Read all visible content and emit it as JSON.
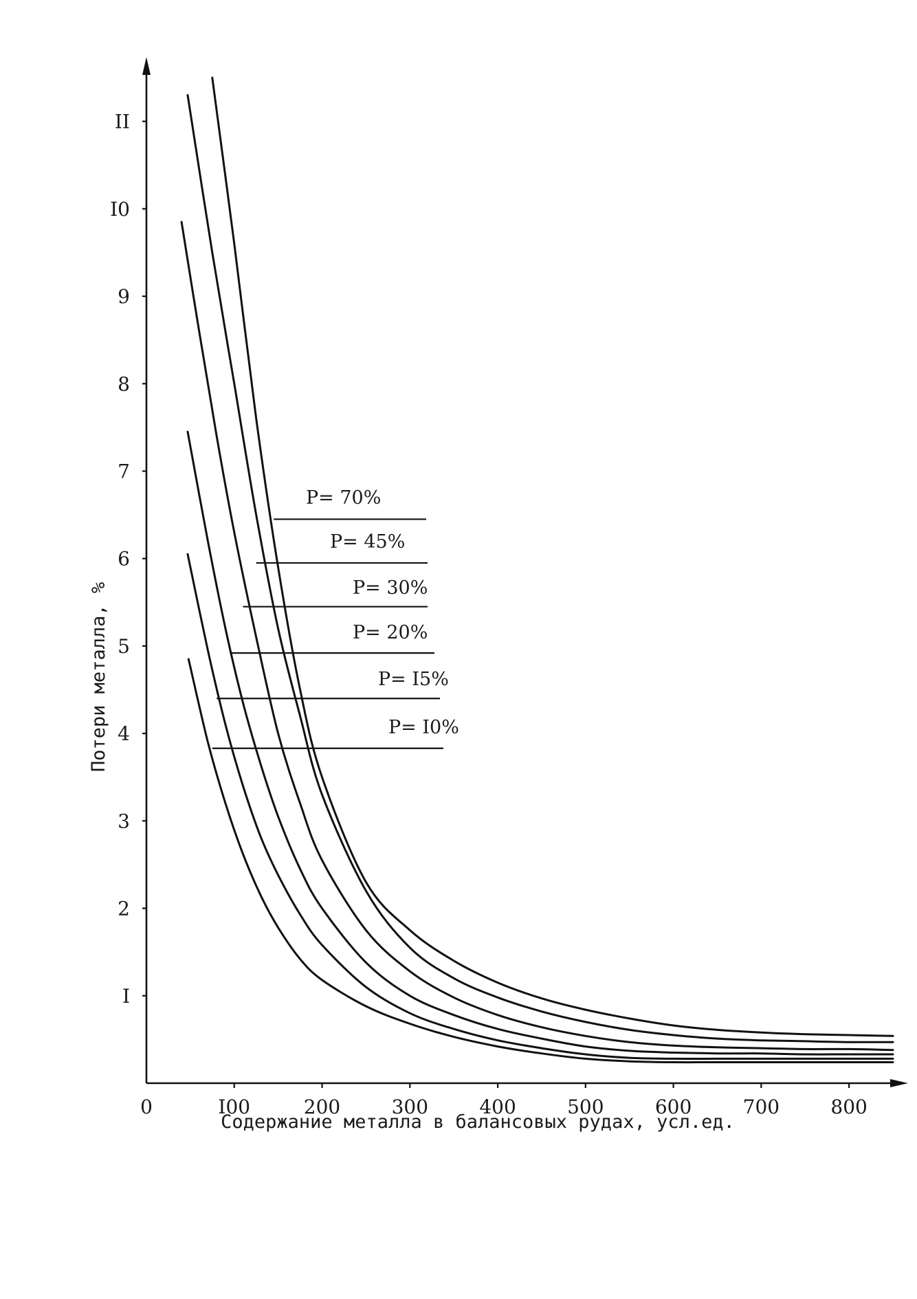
{
  "chart_data": {
    "type": "line",
    "title": "",
    "xlabel": "Содержание металла в балансовых рудах, усл.ед.",
    "ylabel": "Потери металла, %",
    "xlim": [
      0,
      850
    ],
    "ylim": [
      0,
      11.5
    ],
    "x_ticks": [
      {
        "value": 0,
        "label": "0"
      },
      {
        "value": 100,
        "label": "I00"
      },
      {
        "value": 200,
        "label": "200"
      },
      {
        "value": 300,
        "label": "300"
      },
      {
        "value": 400,
        "label": "400"
      },
      {
        "value": 500,
        "label": "500"
      },
      {
        "value": 600,
        "label": "600"
      },
      {
        "value": 700,
        "label": "700"
      },
      {
        "value": 800,
        "label": "800"
      }
    ],
    "y_ticks": [
      {
        "value": 1,
        "label": "I"
      },
      {
        "value": 2,
        "label": "2"
      },
      {
        "value": 3,
        "label": "3"
      },
      {
        "value": 4,
        "label": "4"
      },
      {
        "value": 5,
        "label": "5"
      },
      {
        "value": 6,
        "label": "6"
      },
      {
        "value": 7,
        "label": "7"
      },
      {
        "value": 8,
        "label": "8"
      },
      {
        "value": 9,
        "label": "9"
      },
      {
        "value": 10,
        "label": "I0"
      },
      {
        "value": 11,
        "label": "II"
      }
    ],
    "grid": false,
    "legend": "inline labels with leader lines",
    "series": [
      {
        "name": "P= 70%",
        "label_point": [
          145,
          6.45
        ],
        "x": [
          75,
          100,
          125,
          150,
          175,
          200,
          250,
          300,
          350,
          400,
          450,
          500,
          550,
          600,
          650,
          700,
          750,
          800,
          850
        ],
        "y": [
          11.5,
          9.6,
          7.6,
          5.9,
          4.5,
          3.5,
          2.3,
          1.75,
          1.4,
          1.15,
          0.97,
          0.84,
          0.74,
          0.66,
          0.61,
          0.58,
          0.56,
          0.55,
          0.54
        ]
      },
      {
        "name": "P= 45%",
        "label_point": [
          125,
          5.95
        ],
        "x": [
          47,
          75,
          100,
          125,
          150,
          175,
          200,
          250,
          300,
          350,
          400,
          450,
          500,
          550,
          600,
          650,
          700,
          750,
          800,
          850
        ],
        "y": [
          11.3,
          9.5,
          8.0,
          6.5,
          5.2,
          4.2,
          3.3,
          2.2,
          1.55,
          1.2,
          0.98,
          0.82,
          0.7,
          0.61,
          0.55,
          0.51,
          0.49,
          0.48,
          0.47,
          0.47
        ]
      },
      {
        "name": "P= 30%",
        "label_point": [
          110,
          5.45
        ],
        "x": [
          40,
          60,
          80,
          100,
          125,
          150,
          175,
          200,
          250,
          300,
          350,
          400,
          450,
          500,
          550,
          600,
          650,
          700,
          750,
          800,
          850
        ],
        "y": [
          9.85,
          8.6,
          7.4,
          6.3,
          5.1,
          4.0,
          3.2,
          2.55,
          1.75,
          1.28,
          0.98,
          0.78,
          0.64,
          0.54,
          0.47,
          0.43,
          0.41,
          0.4,
          0.39,
          0.39,
          0.38
        ]
      },
      {
        "name": "P= 20%",
        "label_point": [
          95,
          4.92
        ],
        "x": [
          47,
          70,
          90,
          110,
          130,
          150,
          175,
          200,
          250,
          300,
          350,
          400,
          450,
          500,
          550,
          600,
          650,
          700,
          750,
          800,
          850
        ],
        "y": [
          7.45,
          6.2,
          5.2,
          4.35,
          3.65,
          3.05,
          2.45,
          2.0,
          1.38,
          1.0,
          0.78,
          0.62,
          0.51,
          0.42,
          0.37,
          0.35,
          0.34,
          0.34,
          0.33,
          0.33,
          0.33
        ]
      },
      {
        "name": "P= I5%",
        "label_point": [
          80,
          4.4
        ],
        "x": [
          47,
          70,
          90,
          110,
          130,
          150,
          175,
          200,
          250,
          300,
          350,
          400,
          450,
          500,
          550,
          600,
          650,
          700,
          750,
          800,
          850
        ],
        "y": [
          6.05,
          4.95,
          4.1,
          3.4,
          2.82,
          2.38,
          1.93,
          1.58,
          1.1,
          0.8,
          0.62,
          0.49,
          0.4,
          0.33,
          0.29,
          0.28,
          0.28,
          0.28,
          0.28,
          0.28,
          0.28
        ]
      },
      {
        "name": "P= I0%",
        "label_point": [
          75,
          3.83
        ],
        "x": [
          48,
          70,
          90,
          110,
          130,
          150,
          175,
          200,
          250,
          300,
          350,
          400,
          450,
          500,
          550,
          600,
          650,
          700,
          750,
          800,
          850
        ],
        "y": [
          4.85,
          3.9,
          3.2,
          2.62,
          2.15,
          1.78,
          1.42,
          1.18,
          0.88,
          0.68,
          0.53,
          0.42,
          0.34,
          0.28,
          0.25,
          0.24,
          0.24,
          0.24,
          0.24,
          0.24,
          0.24
        ]
      }
    ],
    "colors": {
      "line": "#111111",
      "background": "#ffffff"
    }
  }
}
